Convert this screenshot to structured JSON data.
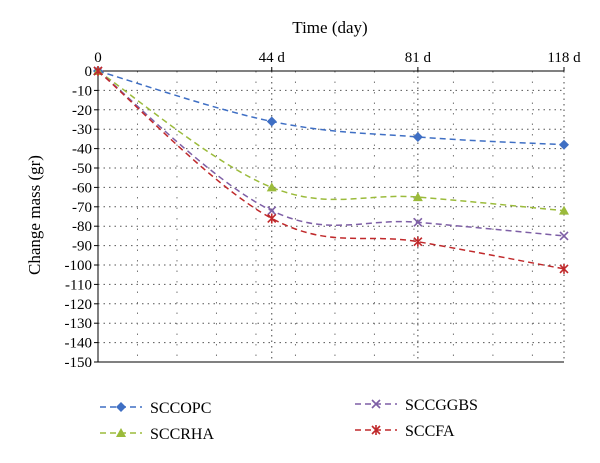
{
  "chart_data": {
    "type": "line",
    "title": "",
    "xlabel": "Time (day)",
    "ylabel": "Change mass (gr)",
    "x": [
      0,
      44,
      81,
      118
    ],
    "x_tick_labels": [
      "0",
      "44 d",
      "81 d",
      "118 d"
    ],
    "xlim": [
      0,
      118
    ],
    "ylim": [
      -150,
      0
    ],
    "y_ticks": [
      0,
      -10,
      -20,
      -30,
      -40,
      -50,
      -60,
      -70,
      -80,
      -90,
      -100,
      -110,
      -120,
      -130,
      -140,
      -150
    ],
    "grid": true,
    "legend_position": "bottom",
    "series": [
      {
        "name": "SCCOPC",
        "values": [
          0,
          -26,
          -34,
          -38
        ],
        "color": "#3f6fc4",
        "marker": "diamond"
      },
      {
        "name": "SCCRHA",
        "values": [
          0,
          -60,
          -65,
          -72
        ],
        "color": "#9bbb3b",
        "marker": "triangle"
      },
      {
        "name": "SCCGGBS",
        "values": [
          0,
          -72,
          -78,
          -85
        ],
        "color": "#7e5fa6",
        "marker": "x"
      },
      {
        "name": "SCCFA",
        "values": [
          0,
          -76,
          -88,
          -102
        ],
        "color": "#c0292b",
        "marker": "star"
      }
    ]
  }
}
